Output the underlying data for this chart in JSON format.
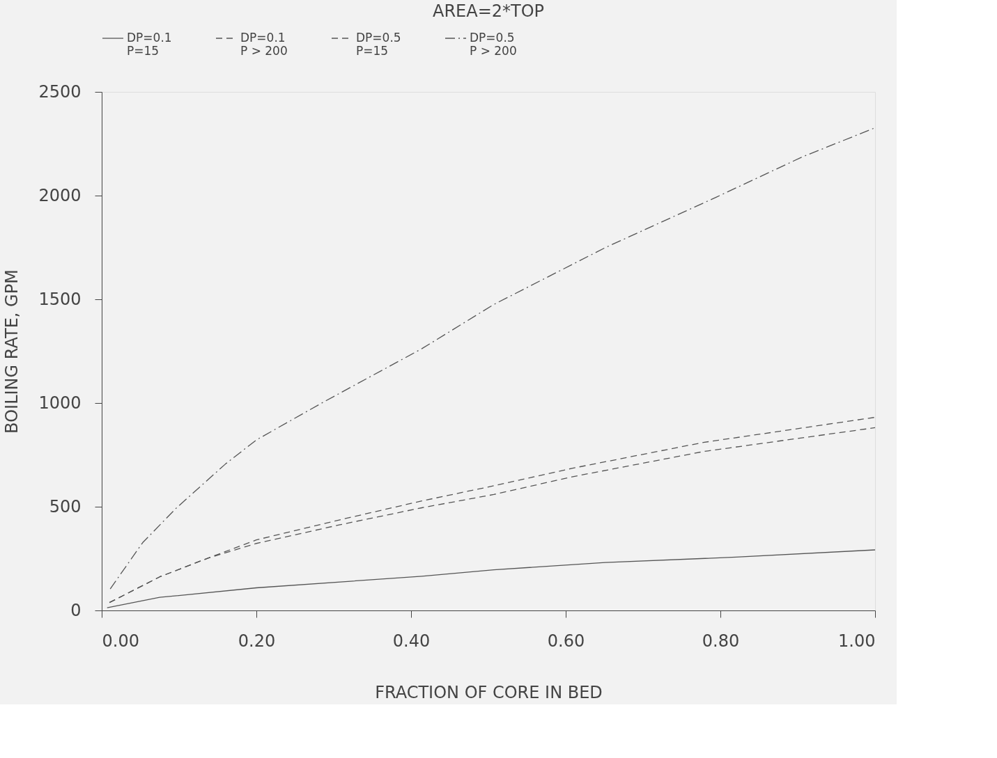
{
  "chart_data": {
    "type": "line",
    "title": "AREA=2*TOP",
    "xlabel": "FRACTION OF CORE IN BED",
    "ylabel": "BOILING RATE, GPM",
    "xlim": [
      0,
      1
    ],
    "xticks": [
      {
        "value": 0,
        "label": "0.00"
      },
      {
        "value": 0.2,
        "label": "0.20"
      },
      {
        "value": 0.4,
        "label": "0.40"
      },
      {
        "value": 0.6,
        "label": "0.60"
      },
      {
        "value": 0.8,
        "label": "0.80"
      },
      {
        "value": 1,
        "label": "1.00"
      }
    ],
    "ylim": [
      0,
      2500
    ],
    "yticks": [
      0,
      500,
      1000,
      1500,
      2000,
      2500
    ],
    "grid": false,
    "legend": "top",
    "marker": "none",
    "series": [
      {
        "name": "DP=0.1\nP=15",
        "color": "#555555",
        "line_style": "solid",
        "x": [
          0.007,
          0.075,
          0.2,
          0.414,
          0.507,
          0.651,
          0.82,
          1.0
        ],
        "values": [
          13,
          63,
          109,
          165,
          196,
          231,
          257,
          292
        ]
      },
      {
        "name": "DP=0.1\nP > 200",
        "color": "#555555",
        "line_style": "dashed",
        "x": [
          0.01,
          0.075,
          0.138,
          0.2,
          0.308,
          0.414,
          0.507,
          0.608,
          0.778,
          1.0
        ],
        "values": [
          38,
          162,
          253,
          323,
          413,
          495,
          559,
          644,
          766,
          881
        ]
      },
      {
        "name": "DP=0.5\nP=15",
        "color": "#555555",
        "line_style": "dashed",
        "x": [
          0.01,
          0.075,
          0.138,
          0.2,
          0.308,
          0.414,
          0.507,
          0.608,
          0.778,
          1.0
        ],
        "values": [
          38,
          162,
          253,
          340,
          437,
          528,
          601,
          685,
          810,
          931
        ]
      },
      {
        "name": "DP=0.5\nP > 200",
        "color": "#555555",
        "line_style": "dashdot",
        "x": [
          0.011,
          0.053,
          0.096,
          0.16,
          0.2,
          0.286,
          0.414,
          0.507,
          0.651,
          0.795,
          0.905,
          1.0
        ],
        "values": [
          104,
          327,
          492,
          706,
          822,
          1003,
          1262,
          1475,
          1749,
          1993,
          2185,
          2327
        ]
      }
    ]
  }
}
